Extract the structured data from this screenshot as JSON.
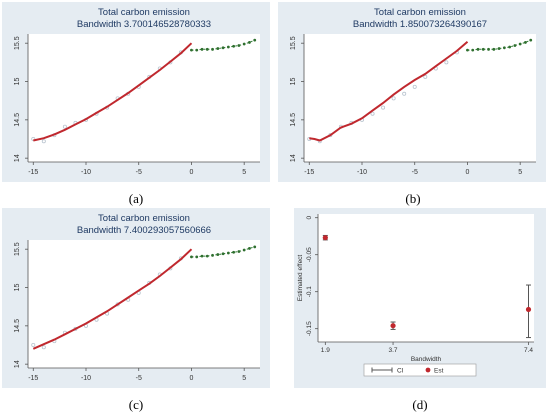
{
  "colors": {
    "panel_bg": "#e5ecf2",
    "plot_bg": "#ffffff",
    "title": "#1f3a63",
    "axis": "#555555",
    "fit_line": "#c0282e",
    "rd_line": "#2e7d32",
    "rd_marker": "#2f6f2f",
    "scatter_point": "#b9c4cf",
    "ci": "#555555",
    "est": "#c0282e"
  },
  "subfigure_labels": [
    "(a)",
    "(b)",
    "(c)",
    "(d)"
  ],
  "chart_data": [
    {
      "type": "line",
      "panel": "a",
      "title": "Total carbon emission",
      "subtitle": "Bandwidth 3.700146528780333",
      "xlim": [
        -15.5,
        6.5
      ],
      "ylim": [
        13.95,
        15.62
      ],
      "x_ticks": [
        -15,
        -10,
        -5,
        0,
        5
      ],
      "y_ticks": [
        14,
        14.5,
        15,
        15.5
      ],
      "x_tick_labels": [
        "-15",
        "-10",
        "-5",
        "0",
        "5"
      ],
      "y_tick_labels": [
        "14",
        "14.5",
        "15",
        "15.5"
      ],
      "grid": false,
      "series": [
        {
          "style": "line",
          "color_key": "fit_line",
          "x": [
            -15,
            -14,
            -13,
            -12,
            -11,
            -10,
            -9,
            -8,
            -7,
            -6,
            -5,
            -4,
            -3,
            -2,
            -1,
            0
          ],
          "y": [
            14.23,
            14.26,
            14.31,
            14.37,
            14.44,
            14.51,
            14.59,
            14.67,
            14.76,
            14.85,
            14.95,
            15.05,
            15.15,
            15.26,
            15.37,
            15.5
          ]
        },
        {
          "style": "markers",
          "color_key": "scatter_point",
          "x": [
            -15,
            -14,
            -13,
            -12,
            -11,
            -10,
            -9,
            -8,
            -7,
            -6,
            -5,
            -4,
            -3,
            -2,
            -1
          ],
          "y": [
            14.25,
            14.22,
            14.3,
            14.41,
            14.46,
            14.5,
            14.58,
            14.66,
            14.78,
            14.84,
            14.93,
            15.06,
            15.17,
            15.25,
            15.38
          ]
        },
        {
          "style": "dashed-markers",
          "color_key": "rd_line",
          "x": [
            0,
            0.5,
            1,
            1.5,
            2,
            2.5,
            3,
            3.5,
            4,
            4.5,
            5,
            5.5,
            6
          ],
          "y": [
            15.41,
            15.41,
            15.42,
            15.42,
            15.42,
            15.43,
            15.44,
            15.45,
            15.46,
            15.47,
            15.49,
            15.51,
            15.54
          ]
        }
      ]
    },
    {
      "type": "line",
      "panel": "b",
      "title": "Total carbon emission",
      "subtitle": "Bandwidth 1.850073264390167",
      "xlim": [
        -15.5,
        6.5
      ],
      "ylim": [
        13.95,
        15.62
      ],
      "x_ticks": [
        -15,
        -10,
        -5,
        0,
        5
      ],
      "y_ticks": [
        14,
        14.5,
        15,
        15.5
      ],
      "x_tick_labels": [
        "-15",
        "-10",
        "-5",
        "0",
        "5"
      ],
      "y_tick_labels": [
        "14",
        "14.5",
        "15",
        "15.5"
      ],
      "grid": false,
      "series": [
        {
          "style": "line",
          "color_key": "fit_line",
          "x": [
            -15,
            -14.5,
            -14,
            -13,
            -12,
            -11,
            -10,
            -9,
            -8,
            -7,
            -6,
            -5,
            -4,
            -3,
            -2,
            -1,
            0
          ],
          "y": [
            14.26,
            14.25,
            14.23,
            14.3,
            14.4,
            14.45,
            14.52,
            14.62,
            14.72,
            14.83,
            14.93,
            15.02,
            15.1,
            15.2,
            15.3,
            15.4,
            15.52
          ]
        },
        {
          "style": "markers",
          "color_key": "scatter_point",
          "x": [
            -15,
            -14,
            -13,
            -12,
            -11,
            -10,
            -9,
            -8,
            -7,
            -6,
            -5,
            -4,
            -3,
            -2,
            -1
          ],
          "y": [
            14.25,
            14.22,
            14.3,
            14.41,
            14.46,
            14.5,
            14.58,
            14.66,
            14.78,
            14.84,
            14.93,
            15.06,
            15.17,
            15.25,
            15.38
          ]
        },
        {
          "style": "dashed-markers",
          "color_key": "rd_line",
          "x": [
            0,
            0.5,
            1,
            1.5,
            2,
            2.5,
            3,
            3.5,
            4,
            4.5,
            5,
            5.5,
            6
          ],
          "y": [
            15.41,
            15.41,
            15.42,
            15.42,
            15.42,
            15.42,
            15.43,
            15.44,
            15.45,
            15.47,
            15.49,
            15.51,
            15.54
          ]
        }
      ]
    },
    {
      "type": "line",
      "panel": "c",
      "title": "Total carbon emission",
      "subtitle": "Bandwidth 7.400293057560666",
      "xlim": [
        -15.5,
        6.5
      ],
      "ylim": [
        13.95,
        15.62
      ],
      "x_ticks": [
        -15,
        -10,
        -5,
        0,
        5
      ],
      "y_ticks": [
        14,
        14.5,
        15,
        15.5
      ],
      "x_tick_labels": [
        "-15",
        "-10",
        "-5",
        "0",
        "5"
      ],
      "y_tick_labels": [
        "14",
        "14.5",
        "15",
        "15.5"
      ],
      "grid": false,
      "series": [
        {
          "style": "line",
          "color_key": "fit_line",
          "x": [
            -15,
            -14,
            -13,
            -12,
            -11,
            -10,
            -9,
            -8,
            -7,
            -6,
            -5,
            -4,
            -3,
            -2,
            -1,
            0
          ],
          "y": [
            14.2,
            14.26,
            14.32,
            14.39,
            14.46,
            14.53,
            14.61,
            14.69,
            14.78,
            14.87,
            14.96,
            15.05,
            15.15,
            15.26,
            15.37,
            15.5
          ]
        },
        {
          "style": "markers",
          "color_key": "scatter_point",
          "x": [
            -15,
            -14,
            -13,
            -12,
            -11,
            -10,
            -9,
            -8,
            -7,
            -6,
            -5,
            -4,
            -3,
            -2,
            -1
          ],
          "y": [
            14.25,
            14.22,
            14.3,
            14.41,
            14.46,
            14.5,
            14.58,
            14.66,
            14.78,
            14.84,
            14.93,
            15.06,
            15.17,
            15.25,
            15.38
          ]
        },
        {
          "style": "dashed-markers",
          "color_key": "rd_line",
          "x": [
            0,
            0.5,
            1,
            1.5,
            2,
            2.5,
            3,
            3.5,
            4,
            4.5,
            5,
            5.5,
            6
          ],
          "y": [
            15.4,
            15.4,
            15.41,
            15.41,
            15.42,
            15.43,
            15.44,
            15.45,
            15.46,
            15.47,
            15.49,
            15.51,
            15.53
          ]
        }
      ]
    },
    {
      "type": "scatter",
      "panel": "d",
      "title": "",
      "xlabel": "Bandwidth",
      "ylabel": "Estimated effect",
      "xlim": [
        1.65,
        7.55
      ],
      "ylim": [
        -0.168,
        0.005
      ],
      "x_ticks": [
        1.85,
        3.7,
        7.4
      ],
      "x_tick_labels": [
        "1.9",
        "3.7",
        "7.4"
      ],
      "y_ticks": [
        0,
        -0.05,
        -0.1,
        -0.15
      ],
      "y_tick_labels": [
        "0",
        "-0.05",
        "-0.1",
        "-0.15"
      ],
      "grid": false,
      "legend_position": "bottom",
      "legend": [
        {
          "label": "CI",
          "color_key": "ci",
          "symbol": "capped-line"
        },
        {
          "label": "Est",
          "color_key": "est",
          "symbol": "dot"
        }
      ],
      "series": [
        {
          "name": "Est",
          "x": [
            1.85,
            3.7,
            7.4
          ],
          "y": [
            -0.027,
            -0.146,
            -0.124
          ]
        },
        {
          "name": "CI",
          "x": [
            1.85,
            3.7,
            7.4
          ],
          "low": [
            -0.03,
            -0.151,
            -0.162
          ],
          "high": [
            -0.024,
            -0.141,
            -0.091
          ]
        }
      ]
    }
  ]
}
